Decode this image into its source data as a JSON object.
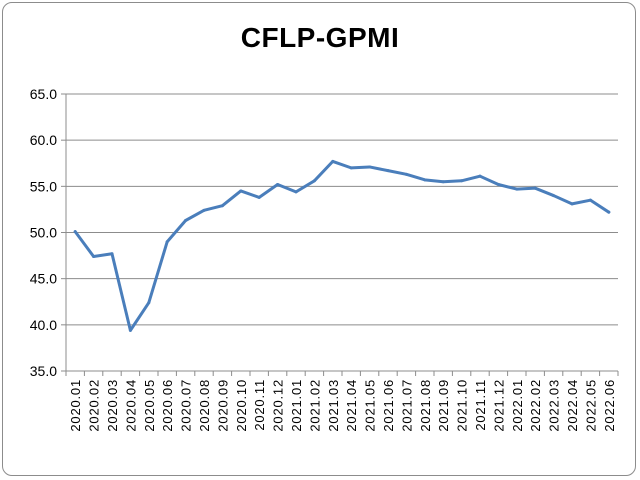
{
  "chart_data": {
    "type": "line",
    "title": "CFLP-GPMI",
    "xlabel": "",
    "ylabel": "",
    "ylim": [
      35,
      65
    ],
    "yticks": [
      "35.0",
      "40.0",
      "45.0",
      "50.0",
      "55.0",
      "60.0",
      "65.0"
    ],
    "grid": true,
    "legend": "none",
    "line_color": "#4a7ebb",
    "categories": [
      "2020.01",
      "2020.02",
      "2020.03",
      "2020.04",
      "2020.05",
      "2020.06",
      "2020.07",
      "2020.08",
      "2020.09",
      "2020.10",
      "2020.11",
      "2020.12",
      "2021.01",
      "2021.02",
      "2021.03",
      "2021.04",
      "2021.05",
      "2021.06",
      "2021.07",
      "2021.08",
      "2021.09",
      "2021.10",
      "2021.11",
      "2021.12",
      "2022.01",
      "2022.02",
      "2022.03",
      "2022.04",
      "2022.05",
      "2022.06"
    ],
    "values": [
      50.1,
      47.4,
      47.7,
      39.4,
      42.4,
      49.0,
      51.3,
      52.4,
      52.9,
      54.5,
      53.8,
      55.2,
      54.4,
      55.6,
      57.7,
      57.0,
      57.1,
      56.7,
      56.3,
      55.7,
      55.5,
      55.6,
      56.1,
      55.2,
      54.7,
      54.8,
      54.0,
      53.1,
      53.5,
      52.2
    ]
  }
}
